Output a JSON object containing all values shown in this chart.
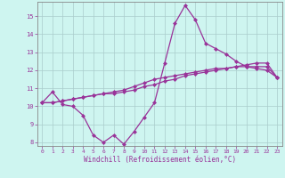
{
  "xlabel": "Windchill (Refroidissement éolien,°C)",
  "background_color": "#cef5f0",
  "grid_color": "#aacccc",
  "line_color": "#993399",
  "x_hours": [
    0,
    1,
    2,
    3,
    4,
    5,
    6,
    7,
    8,
    9,
    10,
    11,
    12,
    13,
    14,
    15,
    16,
    17,
    18,
    19,
    20,
    21,
    22,
    23
  ],
  "series1": [
    10.2,
    10.8,
    10.1,
    10.0,
    9.5,
    8.4,
    8.0,
    8.4,
    7.9,
    8.6,
    9.4,
    10.2,
    12.4,
    14.6,
    15.6,
    14.8,
    13.5,
    13.2,
    12.9,
    12.5,
    12.2,
    12.1,
    12.0,
    11.6
  ],
  "series2": [
    10.2,
    10.2,
    10.3,
    10.4,
    10.5,
    10.6,
    10.7,
    10.7,
    10.8,
    10.9,
    11.1,
    11.2,
    11.4,
    11.5,
    11.7,
    11.8,
    11.9,
    12.0,
    12.1,
    12.2,
    12.3,
    12.4,
    12.4,
    11.6
  ],
  "series3": [
    10.2,
    10.2,
    10.3,
    10.4,
    10.5,
    10.6,
    10.7,
    10.8,
    10.9,
    11.1,
    11.3,
    11.5,
    11.6,
    11.7,
    11.8,
    11.9,
    12.0,
    12.1,
    12.1,
    12.2,
    12.2,
    12.2,
    12.2,
    11.6
  ],
  "ylim": [
    7.8,
    15.8
  ],
  "yticks": [
    8,
    9,
    10,
    11,
    12,
    13,
    14,
    15
  ],
  "xlim": [
    -0.5,
    23.5
  ],
  "xticks": [
    0,
    1,
    2,
    3,
    4,
    5,
    6,
    7,
    8,
    9,
    10,
    11,
    12,
    13,
    14,
    15,
    16,
    17,
    18,
    19,
    20,
    21,
    22,
    23
  ],
  "marker": "D",
  "markersize": 2.0,
  "linewidth": 0.9
}
